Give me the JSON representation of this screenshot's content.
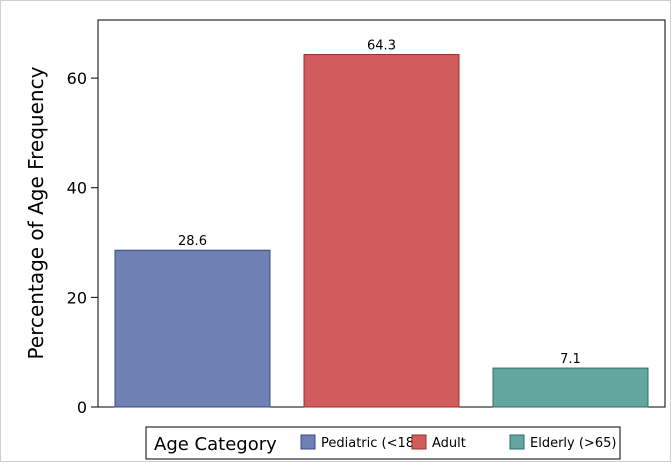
{
  "chart_data": {
    "type": "bar",
    "categories": [
      "Pediatric (<18)",
      "Adult",
      "Elderly (>65)"
    ],
    "values": [
      28.6,
      64.3,
      7.1
    ],
    "data_labels": [
      "28.6",
      "64.3",
      "7.1"
    ],
    "colors": [
      "#6f80b5",
      "#d15c5c",
      "#62a69e"
    ],
    "edge_colors": [
      "#3b4a86",
      "#9e2c2c",
      "#2b6f68"
    ],
    "title": "",
    "xlabel": "",
    "ylabel": "Percentage of Age Frequency",
    "ylim": [
      0,
      70.6
    ],
    "yticks": [
      0,
      20,
      40,
      60
    ],
    "ytick_labels": [
      "0",
      "20",
      "40",
      "60"
    ],
    "grid": false,
    "legend": {
      "title": "Age Category",
      "position": "bottom",
      "entries": [
        "Pediatric (<18)",
        "Adult",
        "Elderly (>65)"
      ]
    }
  }
}
